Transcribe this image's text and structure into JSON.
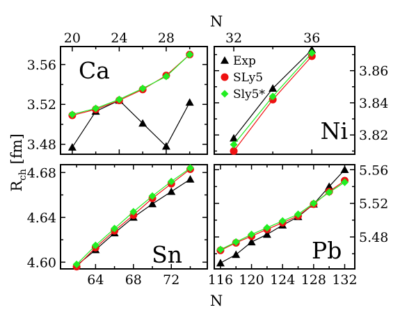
{
  "axis_titles": {
    "top": "N",
    "bottom": "N",
    "y_main": "R",
    "y_sub": "ch",
    "y_unit": "[fm]"
  },
  "legend": [
    {
      "label": "Exp",
      "color": "#000000",
      "marker": "triangle"
    },
    {
      "label": "SLy5",
      "color": "#ee1111",
      "marker": "circle"
    },
    {
      "label": "Sly5*",
      "color": "#22ee22",
      "marker": "diamond"
    }
  ],
  "chart_data": [
    {
      "type": "line",
      "panel": "Ca",
      "label": "Ca",
      "xlim": [
        19,
        31.5
      ],
      "ylim": [
        3.47,
        3.578
      ],
      "xticks": [
        20,
        24,
        28
      ],
      "xticks_minor": [
        22,
        26,
        30
      ],
      "yticks": [
        3.48,
        3.52,
        3.56
      ],
      "yticks_minor": [
        3.5,
        3.54
      ],
      "xtick_side": "top",
      "ytick_side": "left",
      "series": [
        {
          "name": "Exp",
          "x": [
            20,
            22,
            24,
            26,
            28,
            30
          ],
          "y": [
            3.477,
            3.513,
            3.524,
            3.501,
            3.478,
            3.522
          ]
        },
        {
          "name": "SLy5",
          "x": [
            20,
            22,
            24,
            26,
            28,
            30
          ],
          "y": [
            3.509,
            3.515,
            3.524,
            3.535,
            3.549,
            3.57
          ]
        },
        {
          "name": "Sly5*",
          "x": [
            20,
            22,
            24,
            26,
            28,
            30
          ],
          "y": [
            3.51,
            3.516,
            3.525,
            3.536,
            3.548,
            3.57
          ]
        }
      ]
    },
    {
      "type": "line",
      "panel": "Ni",
      "label": "Ni",
      "xlim": [
        31,
        38.2
      ],
      "ylim": [
        3.808,
        3.875
      ],
      "xticks": [
        32,
        36
      ],
      "xticks_minor": [
        34
      ],
      "yticks": [
        3.82,
        3.84,
        3.86
      ],
      "yticks_minor": [
        3.81,
        3.83,
        3.85,
        3.87
      ],
      "xtick_side": "top",
      "ytick_side": "right",
      "series": [
        {
          "name": "Exp",
          "x": [
            32,
            34,
            36
          ],
          "y": [
            3.818,
            3.849,
            3.873
          ]
        },
        {
          "name": "SLy5",
          "x": [
            32,
            34,
            36
          ],
          "y": [
            3.81,
            3.842,
            3.869
          ]
        },
        {
          "name": "Sly5*",
          "x": [
            32,
            34,
            36
          ],
          "y": [
            3.814,
            3.844,
            3.871
          ]
        }
      ]
    },
    {
      "type": "line",
      "panel": "Sn",
      "label": "Sn",
      "xlim": [
        60.3,
        75.8
      ],
      "ylim": [
        4.594,
        4.687
      ],
      "xticks": [
        64,
        68,
        72
      ],
      "xticks_minor": [
        62,
        66,
        70,
        74
      ],
      "yticks": [
        4.6,
        4.64,
        4.68
      ],
      "yticks_minor": [
        4.62,
        4.66
      ],
      "xtick_side": "bottom",
      "ytick_side": "left",
      "series": [
        {
          "name": "Exp",
          "x": [
            62,
            64,
            66,
            68,
            70,
            72,
            74
          ],
          "y": [
            4.597,
            4.611,
            4.626,
            4.64,
            4.652,
            4.663,
            4.674
          ]
        },
        {
          "name": "SLy5",
          "x": [
            62,
            64,
            66,
            68,
            70,
            72,
            74
          ],
          "y": [
            4.596,
            4.613,
            4.628,
            4.642,
            4.657,
            4.67,
            4.683
          ]
        },
        {
          "name": "Sly5*",
          "x": [
            62,
            64,
            66,
            68,
            70,
            72,
            74
          ],
          "y": [
            4.598,
            4.615,
            4.63,
            4.645,
            4.659,
            4.672,
            4.684
          ]
        }
      ]
    },
    {
      "type": "line",
      "panel": "Pb",
      "label": "Pb",
      "xlim": [
        115.2,
        133.3
      ],
      "ylim": [
        5.442,
        5.566
      ],
      "xticks": [
        116,
        120,
        124,
        128,
        132
      ],
      "xticks_minor": [
        118,
        122,
        126,
        130
      ],
      "yticks": [
        5.48,
        5.52,
        5.56
      ],
      "yticks_minor": [
        5.46,
        5.5,
        5.54
      ],
      "xtick_side": "bottom",
      "ytick_side": "right",
      "series": [
        {
          "name": "Exp",
          "x": [
            116,
            118,
            120,
            122,
            124,
            126,
            128,
            130,
            132
          ],
          "y": [
            5.449,
            5.459,
            5.474,
            5.483,
            5.494,
            5.504,
            5.519,
            5.54,
            5.56
          ]
        },
        {
          "name": "SLy5",
          "x": [
            116,
            118,
            120,
            122,
            124,
            126,
            128,
            130,
            132
          ],
          "y": [
            5.464,
            5.473,
            5.481,
            5.489,
            5.497,
            5.505,
            5.519,
            5.534,
            5.547
          ]
        },
        {
          "name": "Sly5*",
          "x": [
            116,
            118,
            120,
            122,
            124,
            126,
            128,
            130,
            132
          ],
          "y": [
            5.465,
            5.474,
            5.483,
            5.491,
            5.499,
            5.507,
            5.52,
            5.533,
            5.545
          ]
        }
      ]
    }
  ]
}
